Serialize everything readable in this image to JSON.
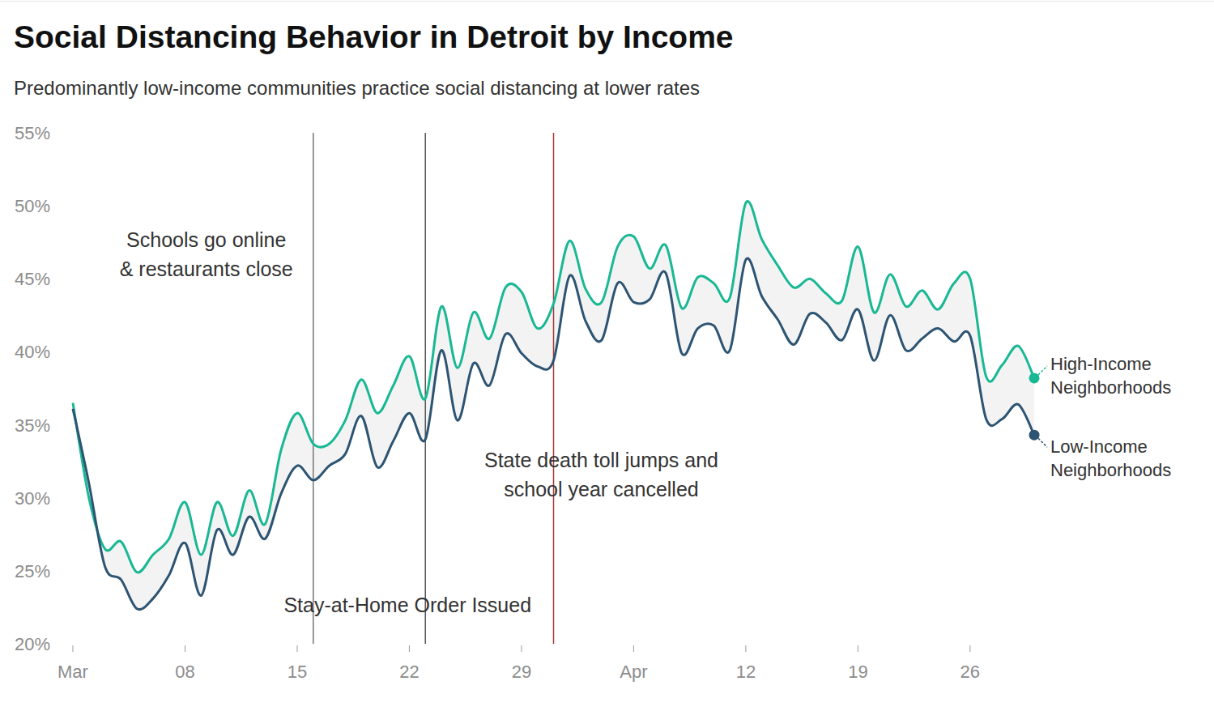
{
  "chart_data": {
    "type": "line",
    "title": "Social Distancing Behavior in Detroit by Income",
    "subtitle": "Predominantly low-income communities practice social distancing at lower rates",
    "categories": [
      "Mar",
      null,
      null,
      null,
      null,
      null,
      null,
      "08",
      null,
      null,
      null,
      null,
      null,
      null,
      "15",
      null,
      null,
      null,
      null,
      null,
      null,
      "22",
      null,
      null,
      null,
      null,
      null,
      null,
      "29",
      null,
      null,
      null,
      null,
      null,
      null,
      "Apr",
      null,
      null,
      null,
      null,
      null,
      null,
      "12",
      null,
      null,
      null,
      null,
      null,
      null,
      "19",
      null,
      null,
      null,
      null,
      null,
      null,
      "26",
      null,
      null,
      null,
      null
    ],
    "series": [
      {
        "name": "High-Income Neighborhoods",
        "color": "#19b894",
        "marker": "last",
        "values": [
          36.5,
          30.0,
          26.5,
          27.0,
          24.9,
          26.1,
          27.2,
          29.7,
          26.1,
          29.7,
          27.4,
          30.5,
          28.2,
          33.3,
          35.8,
          33.7,
          33.7,
          35.3,
          38.1,
          35.8,
          37.7,
          39.7,
          36.8,
          43.1,
          38.9,
          42.7,
          40.9,
          44.4,
          44.1,
          41.6,
          43.3,
          47.6,
          44.3,
          43.4,
          47.2,
          47.9,
          45.7,
          47.3,
          43.0,
          45.1,
          44.7,
          43.7,
          50.2,
          47.7,
          45.9,
          44.4,
          45.0,
          44.0,
          43.5,
          47.2,
          42.7,
          45.3,
          43.1,
          44.2,
          42.9,
          44.7,
          45.0,
          38.3,
          39.1,
          40.4,
          38.2
        ]
      },
      {
        "name": "Low-Income Neighborhoods",
        "color": "#2d5472",
        "marker": "last",
        "values": [
          36.1,
          31.0,
          25.3,
          24.4,
          22.4,
          23.1,
          24.7,
          26.9,
          23.3,
          27.8,
          26.1,
          28.7,
          27.2,
          30.3,
          32.2,
          31.2,
          32.2,
          33.0,
          35.6,
          32.1,
          33.9,
          35.8,
          34.0,
          40.1,
          35.3,
          39.2,
          37.7,
          41.2,
          39.9,
          39.0,
          39.4,
          45.2,
          42.1,
          40.8,
          44.7,
          43.4,
          43.6,
          45.4,
          39.9,
          41.6,
          41.8,
          40.1,
          46.3,
          43.8,
          42.2,
          40.5,
          42.6,
          42.0,
          40.8,
          42.9,
          39.4,
          42.5,
          40.1,
          40.9,
          41.6,
          40.7,
          41.1,
          35.4,
          35.4,
          36.4,
          34.3
        ]
      }
    ],
    "ylim": [
      20,
      55
    ],
    "yticks": [
      {
        "value": 20,
        "label": "20%"
      },
      {
        "value": 25,
        "label": "25%"
      },
      {
        "value": 30,
        "label": "30%"
      },
      {
        "value": 35,
        "label": "35%"
      },
      {
        "value": 40,
        "label": "40%"
      },
      {
        "value": 45,
        "label": "45%"
      },
      {
        "value": 50,
        "label": "50%"
      },
      {
        "value": 55,
        "label": "55%"
      }
    ],
    "grid": false,
    "annotations": [
      {
        "text": [
          "Schools go online",
          "& restaurants close"
        ],
        "x": 15,
        "color": "#777777"
      },
      {
        "text": [
          "Stay-at-Home Order Issued"
        ],
        "x": 22,
        "color": "#555555"
      },
      {
        "text": [
          "State death toll jumps and",
          "school year cancelled"
        ],
        "x": 30,
        "color": "#a33a3a"
      }
    ]
  }
}
